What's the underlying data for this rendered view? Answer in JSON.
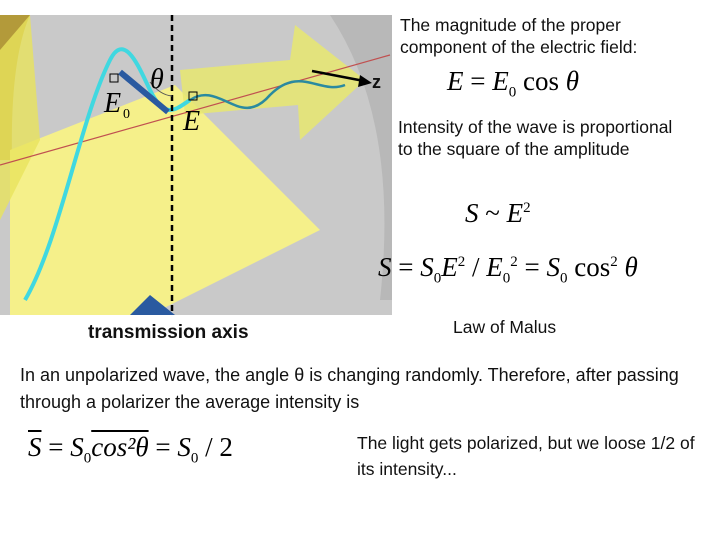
{
  "slide": {
    "figure": {
      "e0": "E",
      "e0_sub": "0",
      "theta": "θ",
      "e": "E",
      "caption": "transmission axis"
    },
    "z_label": "z",
    "top_text": "The magnitude of the proper component of the electric field:",
    "eq_field": [
      {
        "i": "E"
      },
      {
        "r": " = "
      },
      {
        "i": "E"
      },
      {
        "sub": "0"
      },
      {
        "r": " cos "
      },
      {
        "i": "θ"
      }
    ],
    "intensity_text": "Intensity of the wave is proportional to the square of the amplitude",
    "eq_prop": [
      {
        "i": "S"
      },
      {
        "r": " ~ "
      },
      {
        "i": "E"
      },
      {
        "sup": "2"
      }
    ],
    "eq_malus": [
      {
        "i": "S"
      },
      {
        "r": " = "
      },
      {
        "i": "S"
      },
      {
        "sub": "0"
      },
      {
        "i": "E"
      },
      {
        "sup": "2"
      },
      {
        "r": " / "
      },
      {
        "i": "E"
      },
      {
        "sub": "0"
      },
      {
        "sup": "2"
      },
      {
        "r": " = "
      },
      {
        "i": "S"
      },
      {
        "sub": "0"
      },
      {
        "r": " cos"
      },
      {
        "sup": "2"
      },
      {
        "r": " "
      },
      {
        "i": "θ"
      }
    ],
    "malus_label": "Law of Malus",
    "unpolarized_text": "In an unpolarized wave, the angle θ is changing randomly. Therefore, after passing through a polarizer the average intensity is",
    "eq_average": [
      {
        "over": "S"
      },
      {
        "r": " = "
      },
      {
        "i": "S"
      },
      {
        "sub": "0"
      },
      {
        "over": "cos²θ"
      },
      {
        "r": " = "
      },
      {
        "i": "S"
      },
      {
        "sub": "0"
      },
      {
        "r": " / 2"
      }
    ],
    "conclusion_text": "The light gets polarized, but we loose 1/2  of its intensity..."
  }
}
